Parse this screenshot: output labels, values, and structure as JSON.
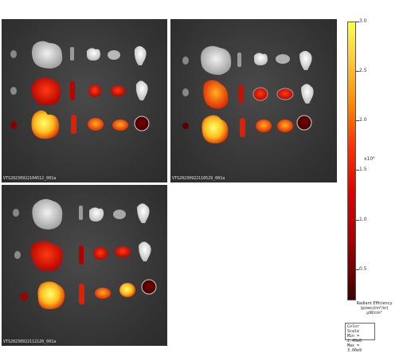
{
  "panels": [
    {
      "label": "VTS20230922104512_001a"
    },
    {
      "label": "VTS20230922110529_001a"
    },
    {
      "label": "VTS20230922112120_001a"
    }
  ],
  "colorbar": {
    "ticks": [
      "3.0",
      "2.5",
      "2.0",
      "1.5",
      "1.0",
      "0.5"
    ],
    "exponent": "x10⁹",
    "title": "Radiant Efficiency",
    "units": "(p/sec/cm²/sr)",
    "units2": "μW/cm²",
    "scale_title": "Color Scale",
    "scale_min": "Min = 2.40e8",
    "scale_max": "Max = 3.00e9"
  }
}
